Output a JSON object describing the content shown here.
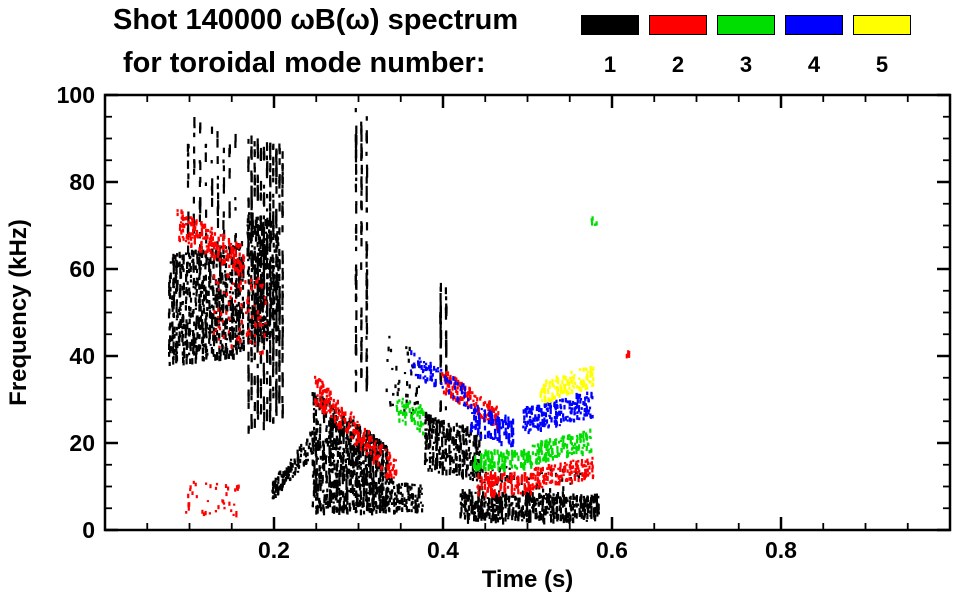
{
  "chart_data": {
    "type": "scatter",
    "title": "Shot 140000 ωB(ω) spectrum",
    "subtitle": "for toroidal mode number:",
    "xlabel": "Time (s)",
    "ylabel": "Frequency (kHz)",
    "xlim": [
      0.0,
      1.0
    ],
    "ylim": [
      0,
      100
    ],
    "x_major_ticks": [
      0.2,
      0.4,
      0.6,
      0.8
    ],
    "x_tick_labels": [
      "0.2",
      "0.4",
      "0.6",
      "0.8"
    ],
    "x_minor_step": 0.05,
    "y_major_ticks": [
      0,
      20,
      40,
      60,
      80,
      100
    ],
    "y_tick_labels": [
      "0",
      "20",
      "40",
      "60",
      "80",
      "100"
    ],
    "y_minor_step": 5,
    "grid": false,
    "background": "#ffffff",
    "frame_color": "#000000",
    "legend_position": "top-right",
    "legend": [
      {
        "label": "1",
        "color": "#000000"
      },
      {
        "label": "2",
        "color": "#ff0000"
      },
      {
        "label": "3",
        "color": "#00dd00"
      },
      {
        "label": "4",
        "color": "#0000ff"
      },
      {
        "label": "5",
        "color": "#ffff00"
      }
    ],
    "_cluster_format": "Each cluster: t=[t0,t1] seconds, f1=[fmin,fmax] kHz at t0, f2=[fmin,fmax] kHz at t1, n=approx point count, style=texture (dense blob, vertical streaks, narrow band, sparse dots)",
    "series": [
      {
        "name": "mode 1",
        "mode": 1,
        "color": "#000000",
        "clusters": [
          {
            "style": "dense",
            "t": [
              0.075,
              0.165
            ],
            "f1": [
              38,
              63
            ],
            "f2": [
              40,
              66
            ],
            "n": 800
          },
          {
            "style": "streak",
            "t": [
              0.095,
              0.158
            ],
            "f1": [
              64,
              95
            ],
            "f2": [
              62,
              90
            ],
            "n": 90,
            "cols": 9
          },
          {
            "style": "streak",
            "t": [
              0.168,
              0.212
            ],
            "f1": [
              22,
              90
            ],
            "f2": [
              26,
              88
            ],
            "n": 520,
            "cols": 12
          },
          {
            "style": "dense",
            "t": [
              0.168,
              0.206
            ],
            "f1": [
              42,
              73
            ],
            "f2": [
              44,
              70
            ],
            "n": 380
          },
          {
            "style": "band",
            "t": [
              0.198,
              0.246
            ],
            "f1": [
              7,
              11
            ],
            "f2": [
              17,
              23
            ],
            "n": 130
          },
          {
            "style": "dense",
            "t": [
              0.245,
              0.335
            ],
            "f1": [
              4,
              32
            ],
            "f2": [
              4,
              19
            ],
            "n": 900
          },
          {
            "style": "streak",
            "t": [
              0.294,
              0.313
            ],
            "f1": [
              32,
              97
            ],
            "f2": [
              32,
              95
            ],
            "n": 130,
            "cols": 3
          },
          {
            "style": "sparse",
            "t": [
              0.335,
              0.376
            ],
            "f1": [
              4,
              12
            ],
            "f2": [
              4,
              10
            ],
            "n": 110
          },
          {
            "style": "sparse",
            "t": [
              0.332,
              0.372
            ],
            "f1": [
              28,
              46
            ],
            "f2": [
              24,
              40
            ],
            "n": 45
          },
          {
            "style": "dense",
            "t": [
              0.378,
              0.446
            ],
            "f1": [
              14,
              27
            ],
            "f2": [
              11,
              22
            ],
            "n": 330
          },
          {
            "style": "streak",
            "t": [
              0.394,
              0.407
            ],
            "f1": [
              27,
              57
            ],
            "f2": [
              27,
              55
            ],
            "n": 60,
            "cols": 2
          },
          {
            "style": "dense",
            "t": [
              0.42,
              0.585
            ],
            "f1": [
              2,
              9
            ],
            "f2": [
              2,
              8
            ],
            "n": 520
          },
          {
            "style": "sparse",
            "t": [
              0.44,
              0.565
            ],
            "f1": [
              9,
              15
            ],
            "f2": [
              9,
              14
            ],
            "n": 55
          }
        ]
      },
      {
        "name": "mode 2",
        "mode": 2,
        "color": "#ff0000",
        "clusters": [
          {
            "style": "band",
            "t": [
              0.085,
              0.165
            ],
            "f1": [
              67,
              74
            ],
            "f2": [
              58,
              65
            ],
            "n": 200
          },
          {
            "style": "sparse",
            "t": [
              0.128,
              0.192
            ],
            "f1": [
              42,
              62
            ],
            "f2": [
              40,
              58
            ],
            "n": 90
          },
          {
            "style": "sparse",
            "t": [
              0.095,
              0.16
            ],
            "f1": [
              3,
              12
            ],
            "f2": [
              3,
              10
            ],
            "n": 40
          },
          {
            "style": "band",
            "t": [
              0.248,
              0.345
            ],
            "f1": [
              29,
              36
            ],
            "f2": [
              10,
              16
            ],
            "n": 220
          },
          {
            "style": "band",
            "t": [
              0.398,
              0.466
            ],
            "f1": [
              32,
              37
            ],
            "f2": [
              23,
              28
            ],
            "n": 130
          },
          {
            "style": "dense",
            "t": [
              0.44,
              0.506
            ],
            "f1": [
              8,
              13
            ],
            "f2": [
              8,
              13
            ],
            "n": 120
          },
          {
            "style": "band",
            "t": [
              0.506,
              0.578
            ],
            "f1": [
              9,
              14
            ],
            "f2": [
              12,
              17
            ],
            "n": 150
          },
          {
            "style": "dot",
            "t": [
              0.617,
              0.625
            ],
            "f1": [
              39,
              41
            ],
            "f2": [
              39,
              41
            ],
            "n": 6
          }
        ]
      },
      {
        "name": "mode 3",
        "mode": 3,
        "color": "#00dd00",
        "clusters": [
          {
            "style": "sparse",
            "t": [
              0.345,
              0.378
            ],
            "f1": [
              25,
              31
            ],
            "f2": [
              22,
              28
            ],
            "n": 60
          },
          {
            "style": "dense",
            "t": [
              0.436,
              0.506
            ],
            "f1": [
              14,
              18
            ],
            "f2": [
              14,
              18
            ],
            "n": 110
          },
          {
            "style": "band",
            "t": [
              0.506,
              0.578
            ],
            "f1": [
              15,
              20
            ],
            "f2": [
              18,
              23
            ],
            "n": 150
          },
          {
            "style": "dot",
            "t": [
              0.574,
              0.582
            ],
            "f1": [
              70,
              73
            ],
            "f2": [
              70,
              73
            ],
            "n": 5
          }
        ]
      },
      {
        "name": "mode 4",
        "mode": 4,
        "color": "#0000ff",
        "clusters": [
          {
            "style": "sparse",
            "t": [
              0.362,
              0.43
            ],
            "f1": [
              36,
              41
            ],
            "f2": [
              28,
              33
            ],
            "n": 85
          },
          {
            "style": "dense",
            "t": [
              0.432,
              0.484
            ],
            "f1": [
              22,
              29
            ],
            "f2": [
              19,
              25
            ],
            "n": 110
          },
          {
            "style": "band",
            "t": [
              0.495,
              0.578
            ],
            "f1": [
              22,
              28
            ],
            "f2": [
              26,
              32
            ],
            "n": 210
          }
        ]
      },
      {
        "name": "mode 5",
        "mode": 5,
        "color": "#ffff00",
        "clusters": [
          {
            "style": "band",
            "t": [
              0.515,
              0.578
            ],
            "f1": [
              29,
              34
            ],
            "f2": [
              33,
              38
            ],
            "n": 140
          }
        ]
      }
    ]
  }
}
